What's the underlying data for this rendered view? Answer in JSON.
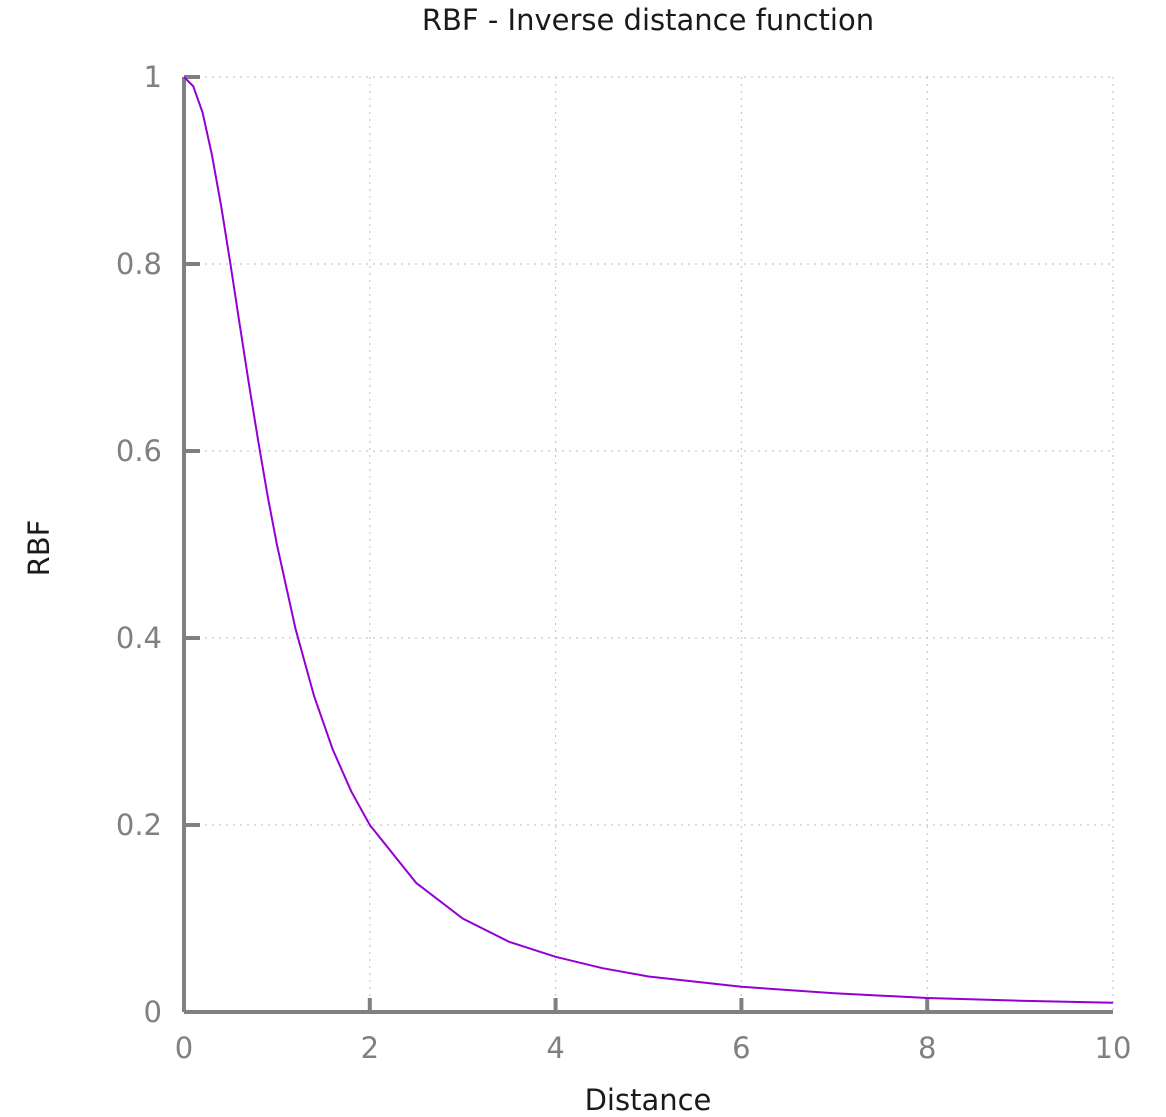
{
  "chart_data": {
    "type": "line",
    "title": "RBF - Inverse distance function",
    "xlabel": "Distance",
    "ylabel": "RBF",
    "xlim": [
      0,
      10
    ],
    "ylim": [
      0,
      1
    ],
    "x_ticks": [
      "0",
      "2",
      "4",
      "6",
      "8",
      "10"
    ],
    "y_ticks": [
      "0",
      "0.2",
      "0.4",
      "0.6",
      "0.8",
      "1"
    ],
    "grid": true,
    "series": [
      {
        "color": "#9400d3",
        "x": [
          0,
          0.1,
          0.2,
          0.3,
          0.4,
          0.5,
          0.6,
          0.7,
          0.8,
          0.9,
          1.0,
          1.2,
          1.4,
          1.6,
          1.8,
          2.0,
          2.5,
          3.0,
          3.5,
          4.0,
          4.5,
          5.0,
          6.0,
          7.0,
          8.0,
          9.0,
          10.0
        ],
        "y": [
          1.0,
          0.99,
          0.962,
          0.917,
          0.862,
          0.8,
          0.735,
          0.671,
          0.61,
          0.552,
          0.5,
          0.41,
          0.338,
          0.281,
          0.236,
          0.2,
          0.138,
          0.1,
          0.075,
          0.059,
          0.047,
          0.038,
          0.027,
          0.02,
          0.015,
          0.012,
          0.0099
        ]
      }
    ]
  }
}
